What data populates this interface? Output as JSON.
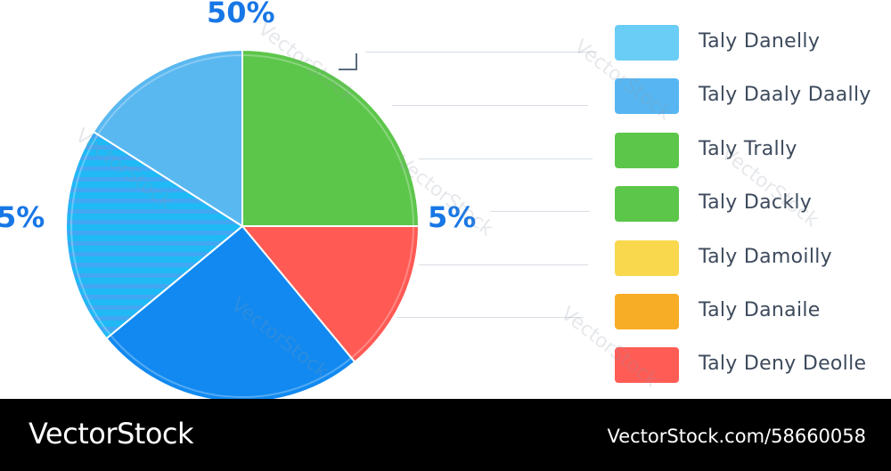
{
  "chart_data": {
    "type": "pie",
    "title": "",
    "labels_on_chart": [
      "50%",
      "5%",
      "5%"
    ],
    "slices": [
      {
        "label": "Taly Danelly",
        "value": 16,
        "color": "#5ab8f0"
      },
      {
        "label": "Taly Daaly Daally",
        "value": 20,
        "color": "#1fb8f5"
      },
      {
        "label": "Taly Trally",
        "value": 25,
        "color": "#5cc64a"
      },
      {
        "label": "Taly Dackly",
        "value": 0,
        "color": "#5cc64a"
      },
      {
        "label": "Taly Damoilly",
        "value": 0,
        "color": "#f8d54a"
      },
      {
        "label": "Taly Danaile",
        "value": 0,
        "color": "#f6aa22"
      },
      {
        "label": "Taly Deny Deolle",
        "value": 14,
        "color": "#ff5a54"
      },
      {
        "label": "",
        "value": 25,
        "color": "#1189f0"
      }
    ],
    "legend": {
      "position": "right",
      "entries": [
        {
          "label": "Taly Danelly",
          "color": "#6acdf5"
        },
        {
          "label": "Taly Daaly Daally",
          "color": "#57b6f2"
        },
        {
          "label": "Taly Trally",
          "color": "#5cc64a"
        },
        {
          "label": "Taly Dackly",
          "color": "#5cc64a"
        },
        {
          "label": "Taly Damoilly",
          "color": "#f9d84d"
        },
        {
          "label": "Taly Danaile",
          "color": "#f7ad25"
        },
        {
          "label": "Taly Deny Deolle",
          "color": "#ff5c56"
        }
      ]
    }
  },
  "watermark": "VectorStock",
  "footer": {
    "brand": "VectorStock",
    "image_id": "VectorStock.com/58660058"
  }
}
